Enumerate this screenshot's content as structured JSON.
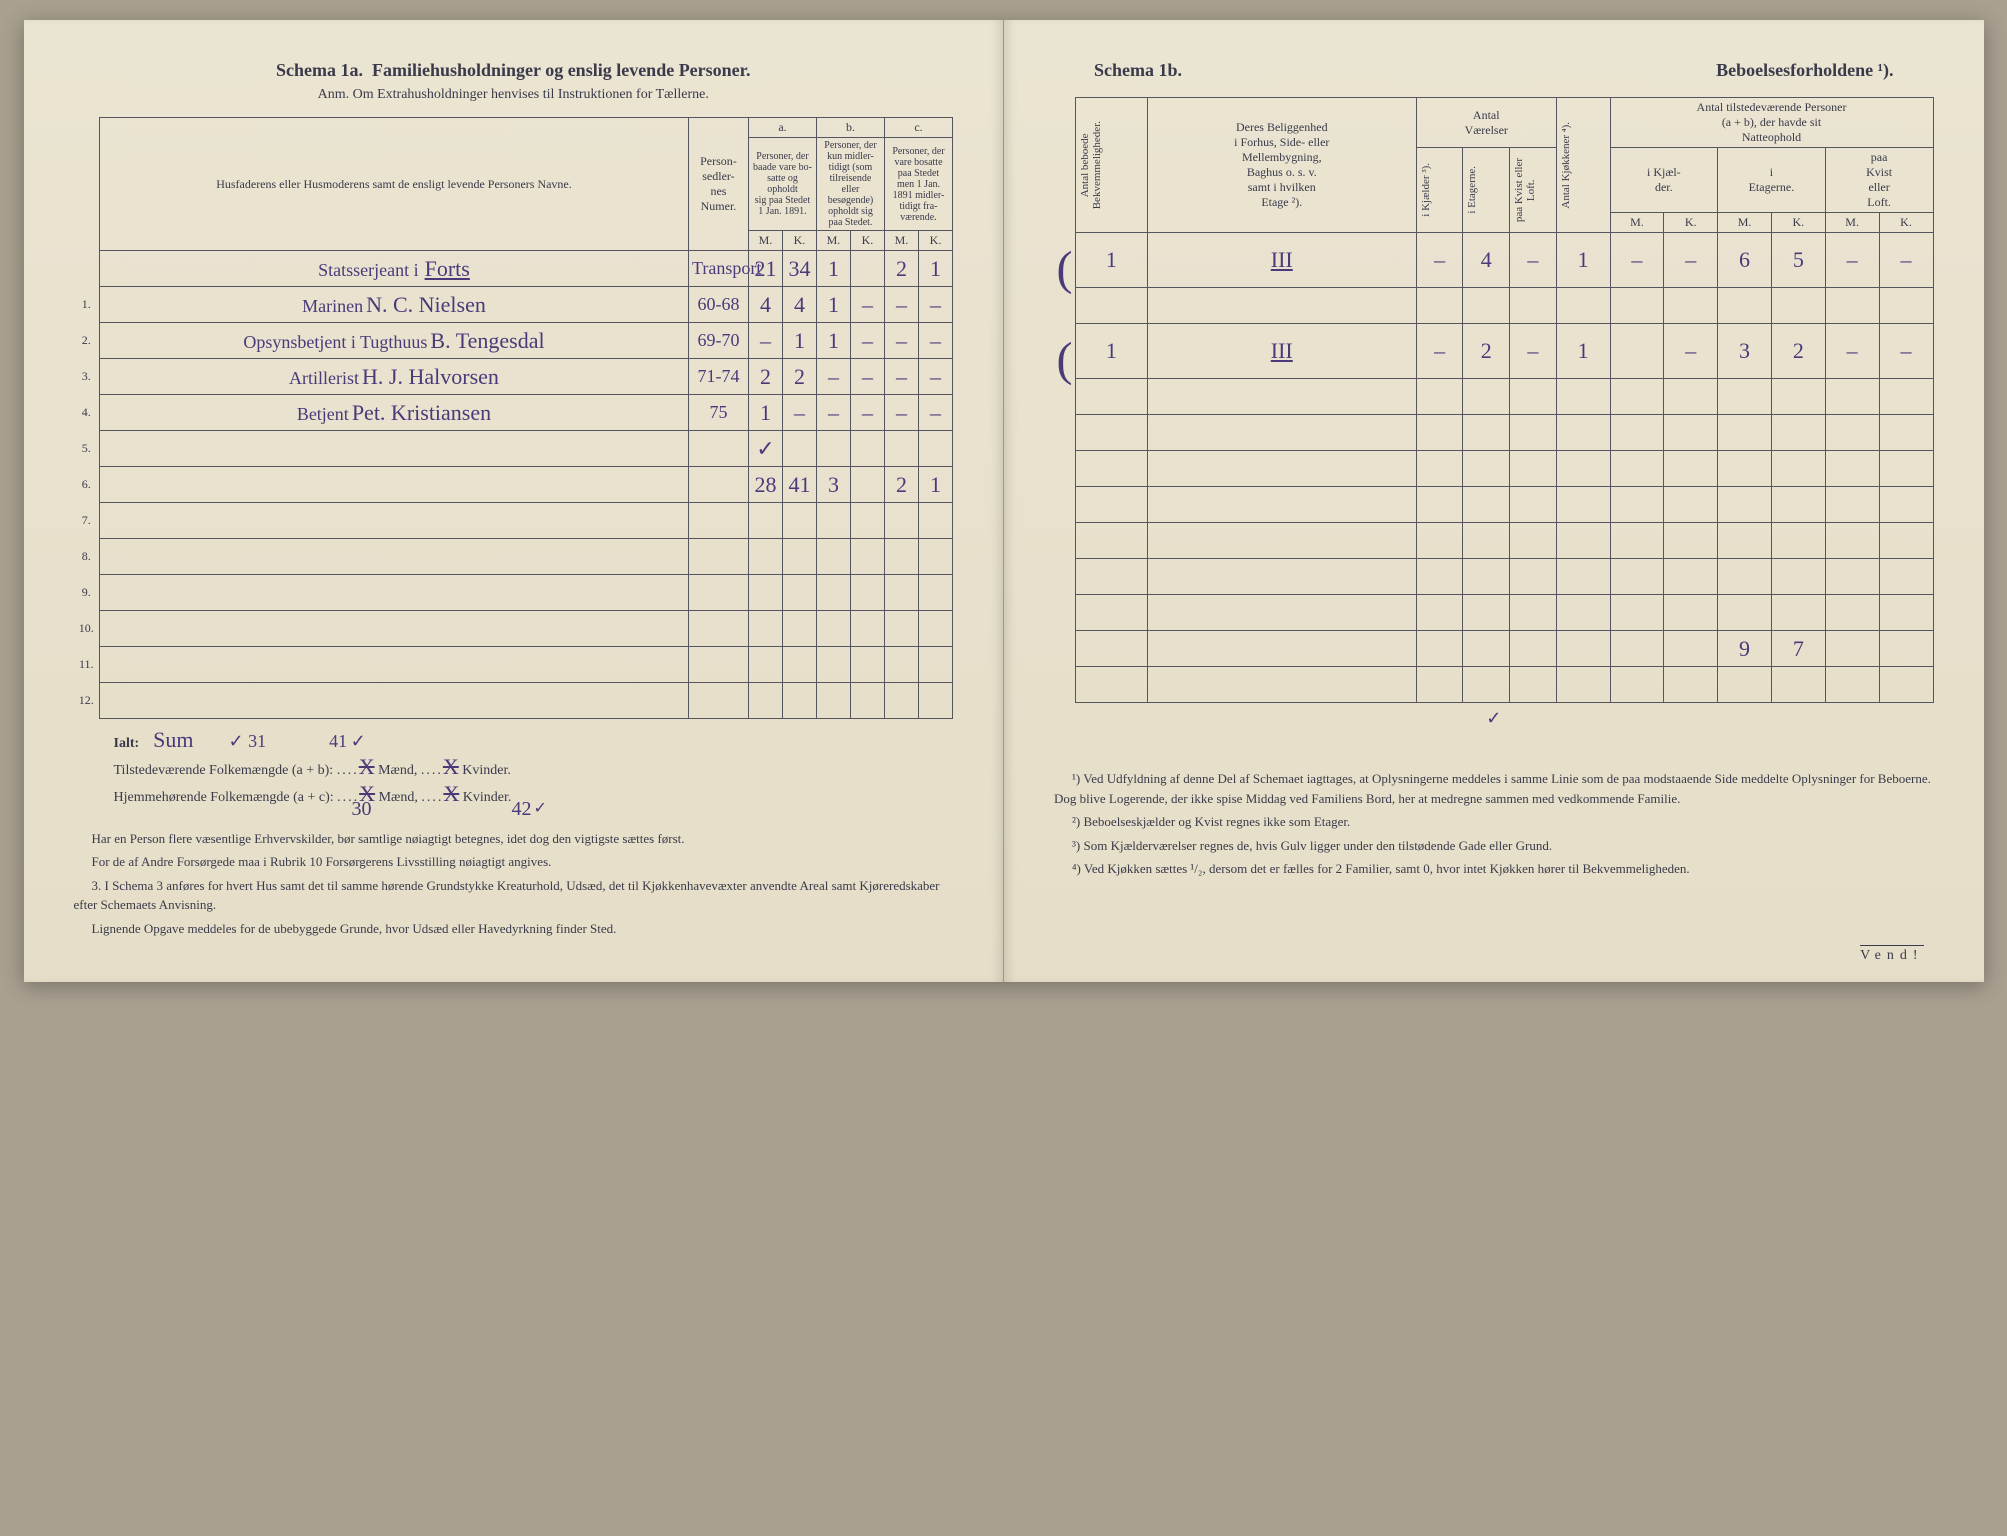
{
  "left": {
    "schema_label": "Schema 1a.",
    "schema_title": "Familiehusholdninger og enslig levende Personer.",
    "anm": "Anm.  Om Extrahusholdninger henvises til Instruktionen for Tællerne.",
    "col_group_labels": {
      "a": "a.",
      "b": "b.",
      "c": "c."
    },
    "col_names": "Husfaderens eller Husmoderens samt de ensligt levende Personers Navne.",
    "col_personsedler": "Person-\nsedler-\nnes\nNumer.",
    "col_a": "Personer, der\nbaade vare bo-\nsatte og opholdt\nsig paa Stedet\n1 Jan. 1891.",
    "col_b": "Personer, der\nkun midler-\ntidigt (som\ntilreisende\neller\nbesøgende)\nopholdt sig\npaa Stedet.",
    "col_c": "Personer, der\nvare bosatte\npaa Stedet\nmen 1 Jan.\n1891 midler-\ntidigt fra-\nværende.",
    "mk": {
      "m": "M.",
      "k": "K."
    },
    "transport_row": {
      "prefix": "Statsserjeant i",
      "name_note": "Forts",
      "label": "Transport",
      "aM": "21",
      "aK": "34",
      "bM": "1",
      "bK": "",
      "cM": "2",
      "cK": "1"
    },
    "rows": [
      {
        "n": "1.",
        "prefix": "Marinen",
        "name": "N. C. Nielsen",
        "num": "60-68",
        "aM": "4",
        "aK": "4",
        "bM": "1",
        "bK": "–",
        "cM": "–",
        "cK": "–"
      },
      {
        "n": "2.",
        "prefix": "Opsynsbetjent i\nTugthuus",
        "name": "B. Tengesdal",
        "num": "69-70",
        "aM": "–",
        "aK": "1",
        "bM": "1",
        "bK": "–",
        "cM": "–",
        "cK": "–"
      },
      {
        "n": "3.",
        "prefix": "Artillerist",
        "name": "H. J. Halvorsen",
        "num": "71-74",
        "aM": "2",
        "aK": "2",
        "bM": "–",
        "bK": "–",
        "cM": "–",
        "cK": "–"
      },
      {
        "n": "4.",
        "prefix": "Betjent",
        "name": "Pet. Kristiansen",
        "num": "75",
        "aM": "1",
        "aK": "–",
        "bM": "–",
        "bK": "–",
        "cM": "–",
        "cK": "–"
      },
      {
        "n": "5.",
        "prefix": "",
        "name": "",
        "num": "",
        "aM": "✓",
        "aK": "",
        "bM": "",
        "bK": "",
        "cM": "",
        "cK": ""
      },
      {
        "n": "6.",
        "prefix": "",
        "name": "",
        "num": "",
        "aM": "28",
        "aK": "41",
        "bM": "3",
        "bK": "",
        "cM": "2",
        "cK": "1"
      },
      {
        "n": "7.",
        "prefix": "",
        "name": "",
        "num": "",
        "aM": "",
        "aK": "",
        "bM": "",
        "bK": "",
        "cM": "",
        "cK": ""
      },
      {
        "n": "8.",
        "prefix": "",
        "name": "",
        "num": "",
        "aM": "",
        "aK": "",
        "bM": "",
        "bK": "",
        "cM": "",
        "cK": ""
      },
      {
        "n": "9.",
        "prefix": "",
        "name": "",
        "num": "",
        "aM": "",
        "aK": "",
        "bM": "",
        "bK": "",
        "cM": "",
        "cK": ""
      },
      {
        "n": "10.",
        "prefix": "",
        "name": "",
        "num": "",
        "aM": "",
        "aK": "",
        "bM": "",
        "bK": "",
        "cM": "",
        "cK": ""
      },
      {
        "n": "11.",
        "prefix": "",
        "name": "",
        "num": "",
        "aM": "",
        "aK": "",
        "bM": "",
        "bK": "",
        "cM": "",
        "cK": ""
      },
      {
        "n": "12.",
        "prefix": "",
        "name": "",
        "num": "",
        "aM": "",
        "aK": "",
        "bM": "",
        "bK": "",
        "cM": "",
        "cK": ""
      }
    ],
    "ialt_label": "Ialt:",
    "sum_hand": "Sum",
    "v31": "✓ 31",
    "v41": "41",
    "totals_line1_a": "Tilstedeværende Folkemængde (a + b): ",
    "totals_line1_b": " Mænd, ",
    "totals_line1_c": " Kvinder.",
    "totals_line2_a": "Hjemmehørende Folkemængde (a + c): ",
    "totals_line2_b": " Mænd, ",
    "totals_line2_c": " Kvinder.",
    "hand_30": "30",
    "hand_42": "42",
    "footnotes": [
      "Har en Person flere væsentlige Erhvervskilder, bør samtlige nøiagtigt betegnes, idet dog den vigtigste sættes først.",
      "For de af Andre Forsørgede maa i Rubrik 10 Forsørgerens Livsstilling nøiagtigt angives.",
      "3. I Schema 3 anføres for hvert Hus samt det til samme hørende Grundstykke Kreaturhold, Udsæd, det til Kjøkkenhavevæxter anvendte Areal samt Kjøreredskaber efter Schemaets Anvisning.",
      "Lignende Opgave meddeles for de ubebyggede Grunde, hvor Udsæd eller Havedyrkning finder Sted."
    ]
  },
  "right": {
    "schema_label": "Schema 1b.",
    "schema_title": "Beboelsesforholdene ¹).",
    "col_antal_bekv": "Antal beboede\nBekvemmeligheder.",
    "col_beliggenhed": "Deres Beliggenhed\ni Forhus, Side- eller\nMellembygning,\nBaghus o. s. v.\nsamt i hvilken\nEtage ²).",
    "col_antal_vaerelser": "Antal\nVærelser",
    "col_kjaelder": "i Kjælder ³).",
    "col_etagerne_v": "i Etagerne.",
    "col_kvist_v": "paa Kvist eller\nLoft.",
    "col_kjokkener": "Antal Kjøkkener ⁴).",
    "col_tilstede_header": "Antal tilstedeværende Personer\n(a + b), der havde sit\nNatteophold",
    "col_natte_kjaelder": "i Kjæl-\nder.",
    "col_natte_etagerne": "i\nEtagerne.",
    "col_natte_kvist": "paa\nKvist\neller\nLoft.",
    "mk": {
      "m": "M.",
      "k": "K."
    },
    "rows": [
      {
        "bekv": "1",
        "etage": "III",
        "kj": "–",
        "et": "4",
        "kv": "–",
        "kjok": "1",
        "nkjM": "–",
        "nkjK": "–",
        "netM": "6",
        "netK": "5",
        "nkvM": "–",
        "nkvK": "–"
      },
      {
        "bekv": "",
        "etage": "",
        "kj": "",
        "et": "",
        "kv": "",
        "kjok": "",
        "nkjM": "",
        "nkjK": "",
        "netM": "",
        "netK": "",
        "nkvM": "",
        "nkvK": ""
      },
      {
        "bekv": "1",
        "etage": "III",
        "kj": "–",
        "et": "2",
        "kv": "–",
        "kjok": "1",
        "nkjM": "",
        "nkjK": "–",
        "netM": "3",
        "netK": "2",
        "nkvM": "–",
        "nkvK": "–"
      },
      {
        "bekv": "",
        "etage": "",
        "kj": "",
        "et": "",
        "kv": "",
        "kjok": "",
        "nkjM": "",
        "nkjK": "",
        "netM": "",
        "netK": "",
        "nkvM": "",
        "nkvK": ""
      },
      {
        "bekv": "",
        "etage": "",
        "kj": "",
        "et": "",
        "kv": "",
        "kjok": "",
        "nkjM": "",
        "nkjK": "",
        "netM": "",
        "netK": "",
        "nkvM": "",
        "nkvK": ""
      },
      {
        "bekv": "",
        "etage": "",
        "kj": "",
        "et": "",
        "kv": "",
        "kjok": "",
        "nkjM": "",
        "nkjK": "",
        "netM": "",
        "netK": "",
        "nkvM": "",
        "nkvK": ""
      },
      {
        "bekv": "",
        "etage": "",
        "kj": "",
        "et": "",
        "kv": "",
        "kjok": "",
        "nkjM": "",
        "nkjK": "",
        "netM": "",
        "netK": "",
        "nkvM": "",
        "nkvK": ""
      },
      {
        "bekv": "",
        "etage": "",
        "kj": "",
        "et": "",
        "kv": "",
        "kjok": "",
        "nkjM": "",
        "nkjK": "",
        "netM": "",
        "netK": "",
        "nkvM": "",
        "nkvK": ""
      },
      {
        "bekv": "",
        "etage": "",
        "kj": "",
        "et": "",
        "kv": "",
        "kjok": "",
        "nkjM": "",
        "nkjK": "",
        "netM": "",
        "netK": "",
        "nkvM": "",
        "nkvK": ""
      },
      {
        "bekv": "",
        "etage": "",
        "kj": "",
        "et": "",
        "kv": "",
        "kjok": "",
        "nkjM": "",
        "nkjK": "",
        "netM": "",
        "netK": "",
        "nkvM": "",
        "nkvK": ""
      },
      {
        "bekv": "",
        "etage": "",
        "kj": "",
        "et": "",
        "kv": "",
        "kjok": "",
        "nkjM": "",
        "nkjK": "",
        "netM": "9",
        "netK": "7",
        "nkvM": "",
        "nkvK": ""
      },
      {
        "bekv": "",
        "etage": "",
        "kj": "",
        "et": "",
        "kv": "",
        "kjok": "",
        "nkjM": "",
        "nkjK": "",
        "netM": "",
        "netK": "",
        "nkvM": "",
        "nkvK": ""
      }
    ],
    "ialt_extra": "✓",
    "footnotes": [
      "¹) Ved Udfyldning af denne Del af Schemaet iagttages, at Oplysningerne meddeles i samme Linie som de paa modstaaende Side meddelte Oplysninger for Beboerne. Dog blive Logerende, der ikke spise Middag ved Familiens Bord, her at medregne sammen med vedkommende Familie.",
      "²) Beboelseskjælder og Kvist regnes ikke som Etager.",
      "³) Som Kjælderværelser regnes de, hvis Gulv ligger under den tilstødende Gade eller Grund.",
      "⁴) Ved Kjøkken sættes ¹/₂, dersom det er fælles for 2 Familier, samt 0, hvor intet Kjøkken hører til Bekvemmeligheden."
    ],
    "vend": "Vend!"
  },
  "style": {
    "paper_bg": "#e8e2d0",
    "rule_color": "#555560",
    "print_text": "#3a3a4a",
    "hand_color": "#4b397a",
    "hand_font": "Brush Script MT, Segoe Script, cursive"
  }
}
